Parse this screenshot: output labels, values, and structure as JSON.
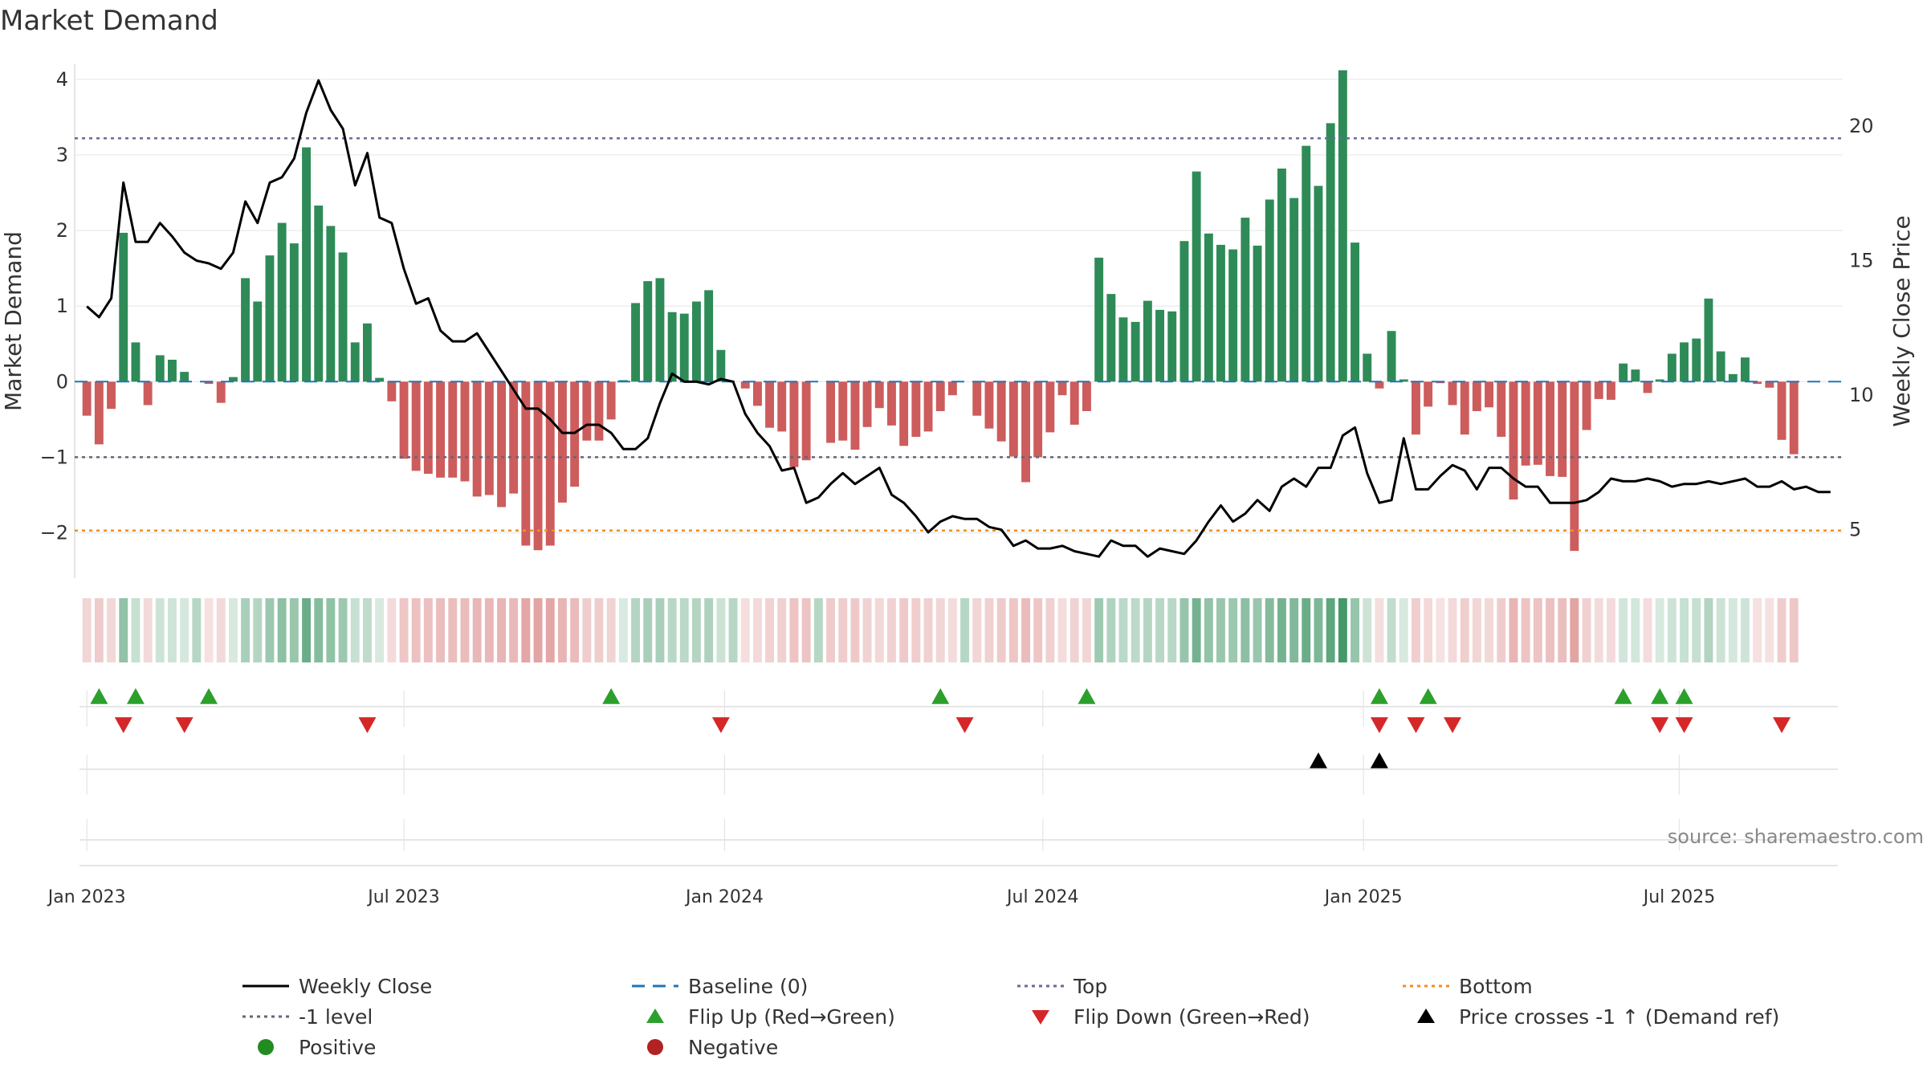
{
  "title": "Market Demand",
  "source": "source: sharemaestro.com",
  "colors": {
    "positive": "#2e8b57",
    "negative": "#cd5c5c",
    "price": "#000000",
    "top": "#6a6a9a",
    "minus_one": "#666677",
    "bottom": "#f28e1c",
    "baseline": "#1f77b4",
    "flip_up": "#2ca02c",
    "flip_down": "#d62728",
    "cross": "#000000",
    "grid": "#e8e8e8"
  },
  "chart_data": {
    "type": "bar",
    "title": "Market Demand",
    "ylabel": "Market Demand",
    "y2label": "Weekly Close Price",
    "ylim": [
      -2.6,
      4.2
    ],
    "y2lim": [
      3.2,
      22.3
    ],
    "yticks": [
      4,
      3,
      2,
      1,
      0,
      -1,
      -2
    ],
    "ytick_labels": [
      "4",
      "3",
      "2",
      "1",
      "0",
      "−1",
      "−2"
    ],
    "y2ticks": [
      20,
      15,
      10,
      5
    ],
    "y2tick_labels": [
      "20",
      "15",
      "10",
      "5"
    ],
    "x_start_week": -1,
    "x_end_week": 144,
    "xticks": [
      {
        "label": "Jan 2023",
        "week": 0
      },
      {
        "label": "Jul 2023",
        "week": 26
      },
      {
        "label": "Jan 2024",
        "week": 52.3
      },
      {
        "label": "Jul 2024",
        "week": 78.4
      },
      {
        "label": "Jan 2025",
        "week": 104.7
      },
      {
        "label": "Jul 2025",
        "week": 130.6
      }
    ],
    "levels": {
      "top": 3.22,
      "minus_one": -1.0,
      "bottom": -1.97
    },
    "demand": [
      -0.45,
      -0.83,
      -0.36,
      1.97,
      0.52,
      -0.31,
      0.35,
      0.29,
      0.13,
      0,
      -0.03,
      -0.28,
      0.06,
      1.37,
      1.06,
      1.67,
      2.1,
      1.83,
      3.1,
      2.33,
      2.06,
      1.71,
      0.52,
      0.77,
      0.05,
      -0.26,
      -1.02,
      -1.18,
      -1.22,
      -1.27,
      -1.27,
      -1.32,
      -1.52,
      -1.5,
      -1.66,
      -1.48,
      -2.17,
      -2.23,
      -2.17,
      -1.6,
      -1.39,
      -0.78,
      -0.78,
      -0.5,
      0.02,
      1.04,
      1.33,
      1.37,
      0.92,
      0.9,
      1.06,
      1.21,
      0.42,
      0,
      -0.09,
      -0.32,
      -0.61,
      -0.66,
      -1.13,
      -1.04,
      0,
      -0.81,
      -0.78,
      -0.9,
      -0.6,
      -0.35,
      -0.58,
      -0.85,
      -0.73,
      -0.66,
      -0.39,
      -0.18,
      0,
      -0.45,
      -0.62,
      -0.79,
      -0.99,
      -1.33,
      -1.0,
      -0.67,
      -0.18,
      -0.57,
      -0.39,
      1.64,
      1.16,
      0.85,
      0.79,
      1.07,
      0.95,
      0.93,
      1.86,
      2.78,
      1.96,
      1.81,
      1.75,
      2.17,
      1.8,
      2.41,
      2.82,
      2.43,
      3.12,
      2.59,
      3.42,
      4.12,
      1.84,
      0.37,
      -0.09,
      0.67,
      0.03,
      -0.7,
      -0.33,
      -0.02,
      -0.31,
      -0.7,
      -0.39,
      -0.34,
      -0.73,
      -1.56,
      -1.11,
      -1.1,
      -1.25,
      -1.26,
      -2.24,
      -0.64,
      -0.23,
      -0.24,
      0.24,
      0.16,
      -0.15,
      0.03,
      0.37,
      0.52,
      0.57,
      1.1,
      0.4,
      0.1,
      0.32,
      -0.03,
      -0.08,
      -0.77,
      -0.96
    ],
    "price": [
      13.3,
      12.9,
      13.6,
      17.9,
      15.7,
      15.7,
      16.4,
      15.9,
      15.3,
      15.0,
      14.9,
      14.7,
      15.3,
      17.2,
      16.4,
      17.9,
      18.1,
      18.8,
      20.5,
      21.7,
      20.6,
      19.9,
      17.8,
      19.0,
      16.6,
      16.4,
      14.7,
      13.4,
      13.6,
      12.4,
      12.0,
      12.0,
      12.3,
      11.6,
      10.9,
      10.2,
      9.5,
      9.5,
      9.1,
      8.6,
      8.6,
      8.9,
      8.9,
      8.6,
      8.0,
      8.0,
      8.4,
      9.7,
      10.8,
      10.5,
      10.5,
      10.4,
      10.6,
      10.5,
      9.3,
      8.6,
      8.1,
      7.2,
      7.3,
      6.0,
      6.2,
      6.7,
      7.1,
      6.7,
      7.0,
      7.3,
      6.3,
      6.0,
      5.5,
      4.9,
      5.3,
      5.5,
      5.4,
      5.4,
      5.1,
      5.0,
      4.4,
      4.6,
      4.3,
      4.3,
      4.4,
      4.2,
      4.1,
      4.0,
      4.6,
      4.4,
      4.4,
      4.0,
      4.3,
      4.2,
      4.1,
      4.6,
      5.3,
      5.9,
      5.3,
      5.6,
      6.1,
      5.7,
      6.6,
      6.9,
      6.6,
      7.3,
      7.3,
      8.5,
      8.8,
      7.1,
      6.0,
      6.1,
      8.4,
      6.5,
      6.5,
      7.0,
      7.4,
      7.2,
      6.5,
      7.3,
      7.3,
      6.9,
      6.6,
      6.6,
      6.0,
      6.0,
      6.0,
      6.1,
      6.4,
      6.9,
      6.8,
      6.8,
      6.9,
      6.8,
      6.6,
      6.7,
      6.7,
      6.8,
      6.7,
      6.8,
      6.9,
      6.6,
      6.6,
      6.8,
      6.5,
      6.6,
      6.4,
      6.4
    ],
    "intensity_strip": {
      "positive_color": "#2e8b57",
      "negative_color": "#cd5c5c"
    },
    "flip_up_weeks": [
      1,
      4,
      10,
      43,
      70,
      82,
      106,
      110,
      126,
      129,
      131
    ],
    "flip_down_weeks": [
      3,
      8,
      23,
      52,
      72,
      106,
      109,
      112,
      129,
      131,
      139
    ],
    "price_cross_weeks": [
      101,
      106
    ]
  },
  "legend": {
    "weekly_close": "Weekly Close",
    "baseline": "Baseline (0)",
    "top": "Top",
    "bottom": "Bottom",
    "minus_one_level": "-1 level",
    "flip_up": "Flip Up (Red→Green)",
    "flip_down": "Flip Down (Green→Red)",
    "price_cross": "Price crosses -1 ↑ (Demand ref)",
    "positive": "Positive",
    "negative": "Negative"
  }
}
